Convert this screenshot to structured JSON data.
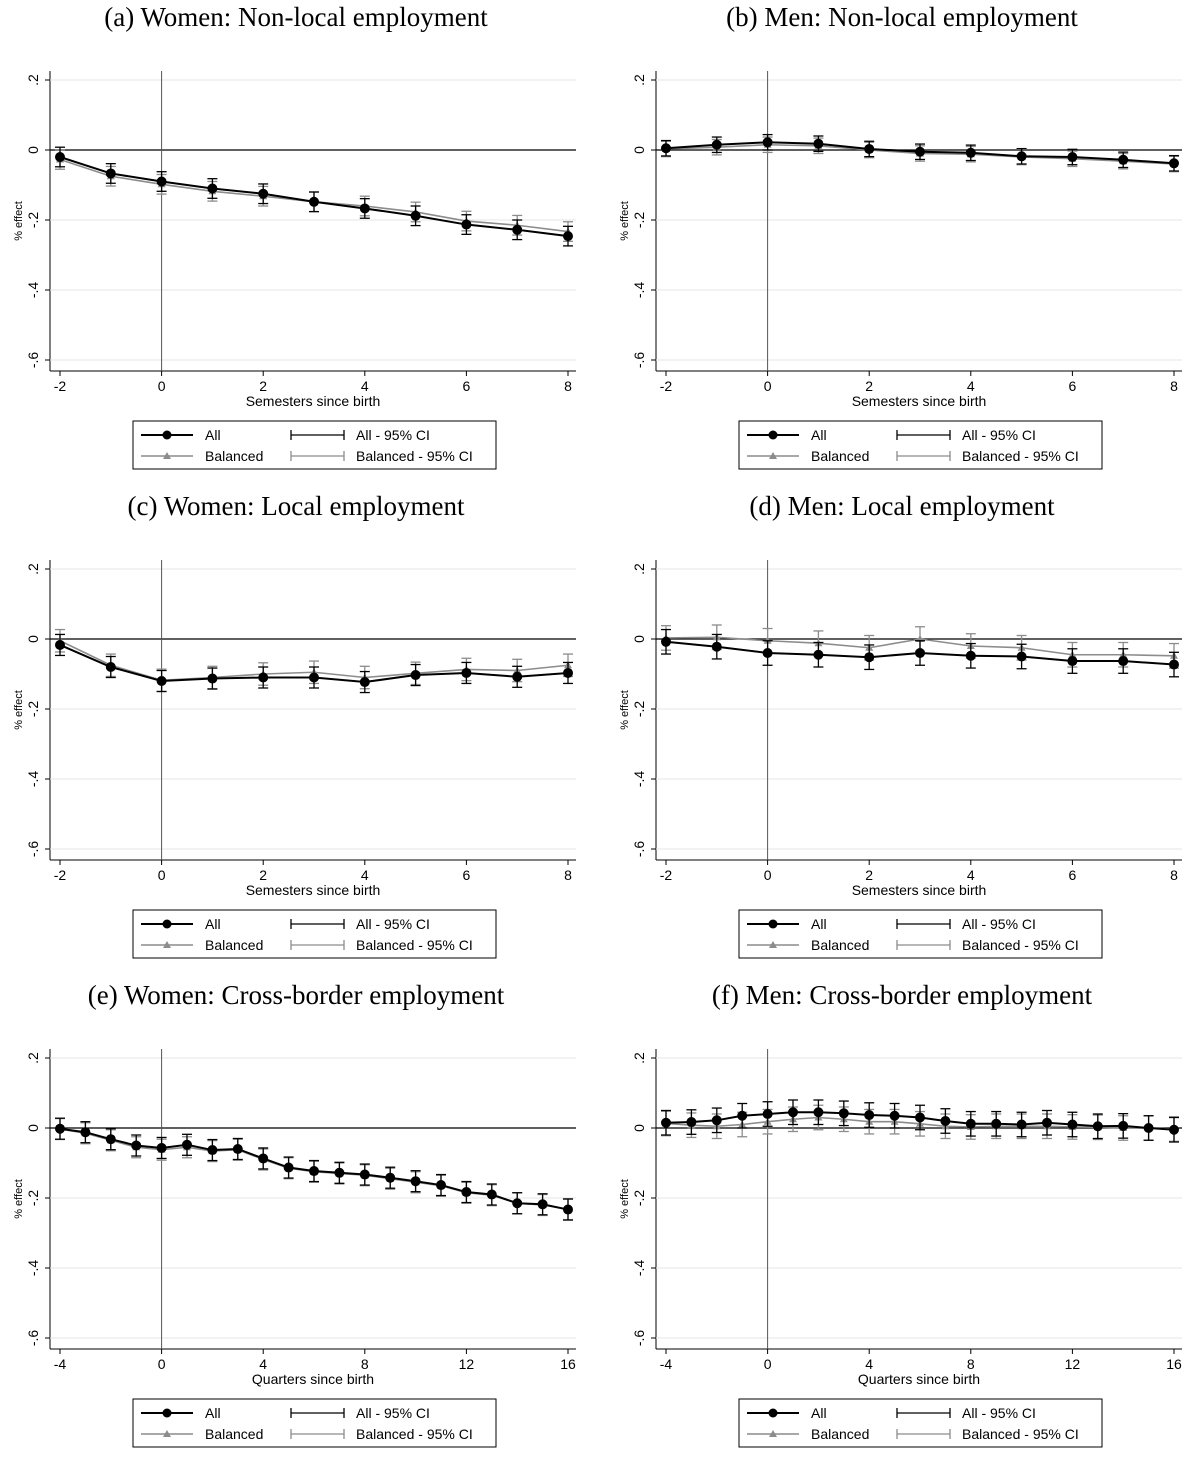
{
  "legend": {
    "all": "All",
    "all_ci": "All - 95% CI",
    "balanced": "Balanced",
    "balanced_ci": "Balanced - 95% CI"
  },
  "colors": {
    "all": "#000000",
    "balanced": "#8c8c8c",
    "grid": "#e6e6e6"
  },
  "chart_data": [
    {
      "type": "line",
      "title": "(a) Women: Non-local employment",
      "xlabel": "Semesters since birth",
      "ylabel": "% effect",
      "xlim": [
        -2,
        8
      ],
      "ylim": [
        -0.6,
        0.2
      ],
      "xticks": [
        "-2",
        "0",
        "2",
        "4",
        "6",
        "8"
      ],
      "yticks": [
        ".2",
        "0",
        "-.2",
        "-.4",
        "-.6"
      ],
      "x": [
        -2,
        -1,
        0,
        1,
        2,
        3,
        4,
        5,
        6,
        7,
        8
      ],
      "series": [
        {
          "name": "All",
          "values": [
            -0.02,
            -0.067,
            -0.09,
            -0.11,
            -0.125,
            -0.148,
            -0.167,
            -0.188,
            -0.213,
            -0.228,
            -0.246
          ],
          "ci": 0.028
        },
        {
          "name": "Balanced",
          "values": [
            -0.027,
            -0.075,
            -0.098,
            -0.118,
            -0.132,
            -0.148,
            -0.16,
            -0.177,
            -0.203,
            -0.215,
            -0.233
          ],
          "ci": 0.028
        }
      ]
    },
    {
      "type": "line",
      "title": "(b) Men: Non-local employment",
      "xlabel": "Semesters since birth",
      "ylabel": "% effect",
      "xlim": [
        -2,
        8
      ],
      "ylim": [
        -0.6,
        0.2
      ],
      "xticks": [
        "-2",
        "0",
        "2",
        "4",
        "6",
        "8"
      ],
      "yticks": [
        ".2",
        "0",
        "-.2",
        "-.4",
        "-.6"
      ],
      "x": [
        -2,
        -1,
        0,
        1,
        2,
        3,
        4,
        5,
        6,
        7,
        8
      ],
      "series": [
        {
          "name": "All",
          "values": [
            0.005,
            0.015,
            0.022,
            0.018,
            0.003,
            -0.005,
            -0.008,
            -0.018,
            -0.02,
            -0.028,
            -0.038
          ],
          "ci": 0.022
        },
        {
          "name": "Balanced",
          "values": [
            0.003,
            0.008,
            0.015,
            0.012,
            0.0,
            -0.01,
            -0.012,
            -0.02,
            -0.025,
            -0.032,
            -0.04
          ],
          "ci": 0.022
        }
      ]
    },
    {
      "type": "line",
      "title": "(c) Women: Local employment",
      "xlabel": "Semesters since birth",
      "ylabel": "% effect",
      "xlim": [
        -2,
        8
      ],
      "ylim": [
        -0.6,
        0.2
      ],
      "xticks": [
        "-2",
        "0",
        "2",
        "4",
        "6",
        "8"
      ],
      "yticks": [
        ".2",
        "0",
        "-.2",
        "-.4",
        "-.6"
      ],
      "x": [
        -2,
        -1,
        0,
        1,
        2,
        3,
        4,
        5,
        6,
        7,
        8
      ],
      "series": [
        {
          "name": "All",
          "values": [
            -0.017,
            -0.08,
            -0.12,
            -0.113,
            -0.11,
            -0.11,
            -0.123,
            -0.103,
            -0.097,
            -0.108,
            -0.097
          ],
          "ci": 0.03
        },
        {
          "name": "Balanced",
          "values": [
            -0.005,
            -0.075,
            -0.118,
            -0.11,
            -0.1,
            -0.095,
            -0.11,
            -0.098,
            -0.087,
            -0.09,
            -0.075
          ],
          "ci": 0.032
        }
      ]
    },
    {
      "type": "line",
      "title": "(d) Men: Local employment",
      "xlabel": "Semesters since birth",
      "ylabel": "% effect",
      "xlim": [
        -2,
        8
      ],
      "ylim": [
        -0.6,
        0.2
      ],
      "xticks": [
        "-2",
        "0",
        "2",
        "4",
        "6",
        "8"
      ],
      "yticks": [
        ".2",
        "0",
        "-.2",
        "-.4",
        "-.6"
      ],
      "x": [
        -2,
        -1,
        0,
        1,
        2,
        3,
        4,
        5,
        6,
        7,
        8
      ],
      "series": [
        {
          "name": "All",
          "values": [
            -0.008,
            -0.022,
            -0.04,
            -0.045,
            -0.052,
            -0.04,
            -0.048,
            -0.05,
            -0.063,
            -0.063,
            -0.073
          ],
          "ci": 0.035
        },
        {
          "name": "Balanced",
          "values": [
            0.003,
            0.005,
            -0.005,
            -0.012,
            -0.025,
            0.0,
            -0.02,
            -0.025,
            -0.045,
            -0.045,
            -0.048
          ],
          "ci": 0.035
        }
      ]
    },
    {
      "type": "line",
      "title": "(e) Women: Cross-border employment",
      "xlabel": "Quarters since birth",
      "ylabel": "% effect",
      "xlim": [
        -4,
        16
      ],
      "ylim": [
        -0.6,
        0.2
      ],
      "xticks": [
        "-4",
        "0",
        "4",
        "8",
        "12",
        "16"
      ],
      "yticks": [
        ".2",
        "0",
        "-.2",
        "-.4",
        "-.6"
      ],
      "x": [
        -4,
        -3,
        -2,
        -1,
        0,
        1,
        2,
        3,
        4,
        5,
        6,
        7,
        8,
        9,
        10,
        11,
        12,
        13,
        14,
        15,
        16
      ],
      "series": [
        {
          "name": "All",
          "values": [
            -0.002,
            -0.012,
            -0.032,
            -0.05,
            -0.057,
            -0.048,
            -0.063,
            -0.06,
            -0.087,
            -0.113,
            -0.123,
            -0.128,
            -0.133,
            -0.142,
            -0.152,
            -0.163,
            -0.183,
            -0.19,
            -0.215,
            -0.218,
            -0.233
          ],
          "ci": 0.03
        },
        {
          "name": "Balanced",
          "values": [
            -0.003,
            -0.015,
            -0.035,
            -0.055,
            -0.062,
            -0.055,
            -0.066,
            -0.062,
            -0.09,
            -0.115,
            -0.125,
            -0.13,
            -0.135,
            -0.145,
            -0.155,
            -0.165,
            -0.185,
            -0.192,
            -0.215,
            -0.22,
            -0.232
          ],
          "ci": 0.03
        }
      ]
    },
    {
      "type": "line",
      "title": "(f) Men: Cross-border employment",
      "xlabel": "Quarters since birth",
      "ylabel": "% effect",
      "xlim": [
        -4,
        16
      ],
      "ylim": [
        -0.6,
        0.2
      ],
      "xticks": [
        "-4",
        "0",
        "4",
        "8",
        "12",
        "16"
      ],
      "yticks": [
        ".2",
        "0",
        "-.2",
        "-.4",
        "-.6"
      ],
      "x": [
        -4,
        -3,
        -2,
        -1,
        0,
        1,
        2,
        3,
        4,
        5,
        6,
        7,
        8,
        9,
        10,
        11,
        12,
        13,
        14,
        15,
        16
      ],
      "series": [
        {
          "name": "All",
          "values": [
            0.015,
            0.017,
            0.022,
            0.035,
            0.04,
            0.045,
            0.045,
            0.042,
            0.037,
            0.035,
            0.03,
            0.02,
            0.012,
            0.012,
            0.01,
            0.015,
            0.01,
            0.005,
            0.006,
            0.0,
            -0.005
          ],
          "ci": 0.035
        },
        {
          "name": "Balanced",
          "values": [
            0.013,
            0.008,
            0.005,
            0.01,
            0.018,
            0.025,
            0.03,
            0.025,
            0.018,
            0.018,
            0.012,
            0.005,
            0.003,
            0.005,
            0.005,
            0.005,
            0.003,
            0.002,
            0.0,
            0.0,
            -0.003
          ],
          "ci": 0.035
        }
      ]
    }
  ]
}
